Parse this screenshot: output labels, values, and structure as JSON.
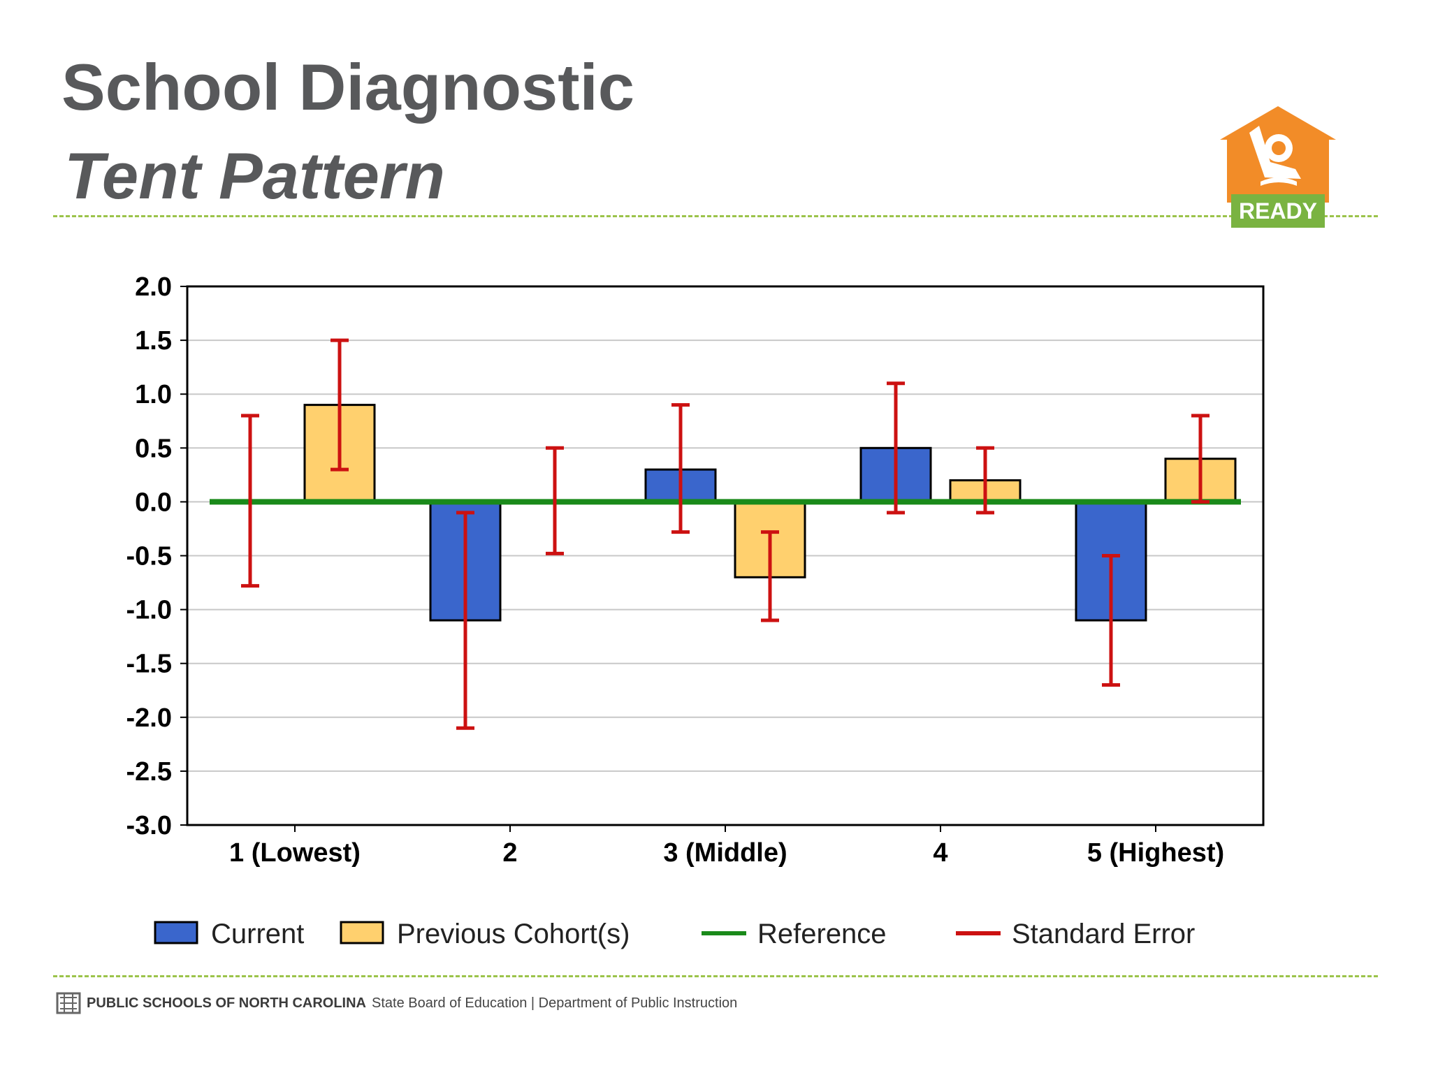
{
  "slide": {
    "title_line1": "School Diagnostic",
    "title_line2": "Tent Pattern",
    "logo_text": "READY",
    "footer_bold": "PUBLIC SCHOOLS OF NORTH CAROLINA",
    "footer_rest": "State Board of Education | Department of Public Instruction"
  },
  "colors": {
    "current": "#3a66cc",
    "previous": "#ffd06e",
    "reference": "#1a8a1a",
    "error": "#cc1111",
    "logo_orange": "#f28c28",
    "logo_green": "#7ab341",
    "divider": "#9bc34a"
  },
  "chart_data": {
    "type": "bar",
    "categories": [
      "1 (Lowest)",
      "2",
      "3 (Middle)",
      "4",
      "5 (Highest)"
    ],
    "series": [
      {
        "name": "Current",
        "values": [
          0,
          -1.1,
          0.3,
          0.5,
          -1.1
        ],
        "error_low": [
          -0.78,
          -2.1,
          -0.28,
          -0.1,
          -1.7
        ],
        "error_high": [
          0.8,
          -0.1,
          0.9,
          1.1,
          -0.5
        ]
      },
      {
        "name": "Previous Cohort(s)",
        "values": [
          0.9,
          0,
          -0.7,
          0.2,
          0.4
        ],
        "error_low": [
          0.3,
          -0.48,
          -1.1,
          -0.1,
          0.0
        ],
        "error_high": [
          1.5,
          0.5,
          -0.28,
          0.5,
          0.8
        ]
      }
    ],
    "reference_value": 0,
    "legend": [
      "Current",
      "Previous Cohort(s)",
      "Reference",
      "Standard Error"
    ],
    "legend_position": "bottom",
    "ylim": [
      -3.0,
      2.0
    ],
    "yticks": [
      "2.0",
      "1.5",
      "1.0",
      "0.5",
      "0.0",
      "-0.5",
      "-1.0",
      "-1.5",
      "-2.0",
      "-2.5",
      "-3.0"
    ],
    "grid": true
  }
}
